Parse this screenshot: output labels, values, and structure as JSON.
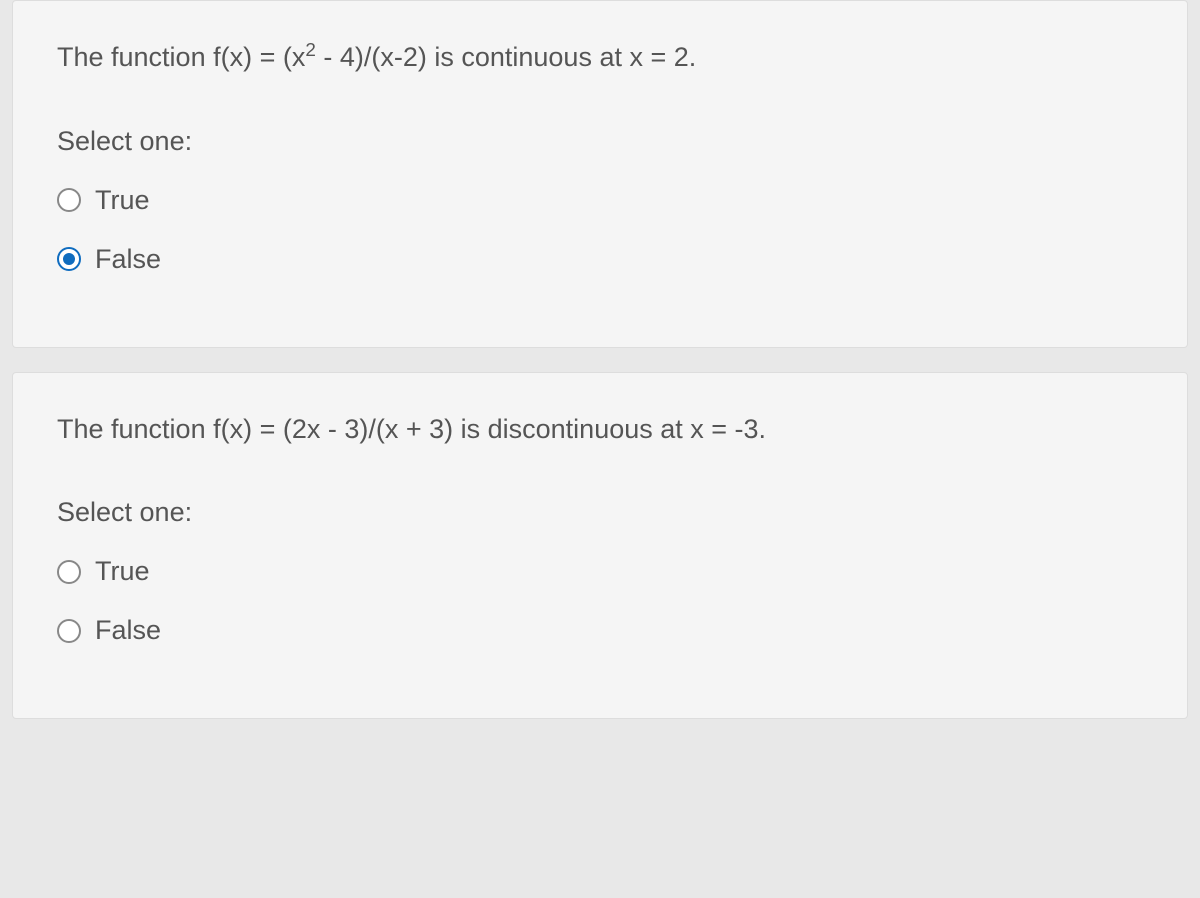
{
  "questions": [
    {
      "text_parts": {
        "pre": "The function f(x) = (x",
        "sup": "2",
        "post": " - 4)/(x-2)  is continuous at x = 2."
      },
      "select_label": "Select one:",
      "options": [
        {
          "label": "True",
          "selected": false
        },
        {
          "label": "False",
          "selected": true
        }
      ]
    },
    {
      "text_parts": {
        "pre": "The function f(x) = (2x - 3)/(x + 3) is discontinuous at x = -3.",
        "sup": "",
        "post": ""
      },
      "select_label": "Select one:",
      "options": [
        {
          "label": "True",
          "selected": false
        },
        {
          "label": "False",
          "selected": false
        }
      ]
    }
  ],
  "colors": {
    "page_bg": "#e8e8e8",
    "card_bg": "#f5f5f5",
    "card_border": "#dddddd",
    "text": "#555555",
    "radio_border": "#888888",
    "radio_selected": "#0f6cbf"
  }
}
